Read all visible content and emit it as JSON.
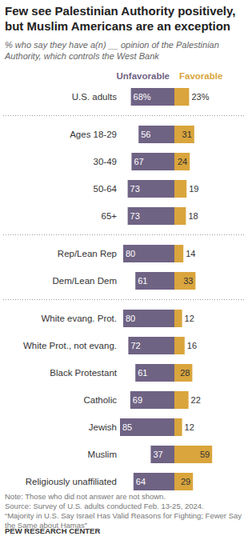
{
  "chart_data": {
    "type": "bar",
    "orientation": "horizontal",
    "title": "Few see Palestinian Authority positively, but Muslim Americans are an exception",
    "subtitle": "% who say they have a(n) __ opinion of the Palestinian Authority, which controls the West Bank",
    "categories": [
      "U.S. adults",
      "Ages 18-29",
      "30-49",
      "50-64",
      "65+",
      "Rep/Lean Rep",
      "Dem/Lean Dem",
      "White evang. Prot.",
      "White Prot., not evang.",
      "Black Protestant",
      "Catholic",
      "Jewish",
      "Muslim",
      "Religiously unaffiliated"
    ],
    "series": [
      {
        "name": "Unfavorable",
        "color": "#6f6384",
        "values": [
          68,
          56,
          67,
          73,
          73,
          80,
          61,
          80,
          72,
          61,
          69,
          85,
          37,
          64
        ],
        "value_labels": [
          "68%",
          "56",
          "67",
          "73",
          "73",
          "80",
          "61",
          "80",
          "72",
          "61",
          "69",
          "85",
          "37",
          "64"
        ]
      },
      {
        "name": "Favorable",
        "color": "#d9a53c",
        "values": [
          23,
          31,
          24,
          19,
          18,
          14,
          33,
          12,
          16,
          28,
          22,
          12,
          59,
          29
        ],
        "value_labels": [
          "23%",
          "31",
          "24",
          "19",
          "18",
          "14",
          "33",
          "12",
          "16",
          "28",
          "22",
          "12",
          "59",
          "29"
        ]
      }
    ],
    "data_labels": true,
    "tick_labels": "y",
    "note": "Note: Those who did not answer are not shown.",
    "source": [
      "Source: Survey of U.S. adults conducted Feb. 13-25, 2024.",
      "“Majority in U.S. Say Israel Has Valid Reasons for Fighting; Fewer Say the Same about Hamas”"
    ],
    "credit": "PEW RESEARCH CENTER"
  }
}
